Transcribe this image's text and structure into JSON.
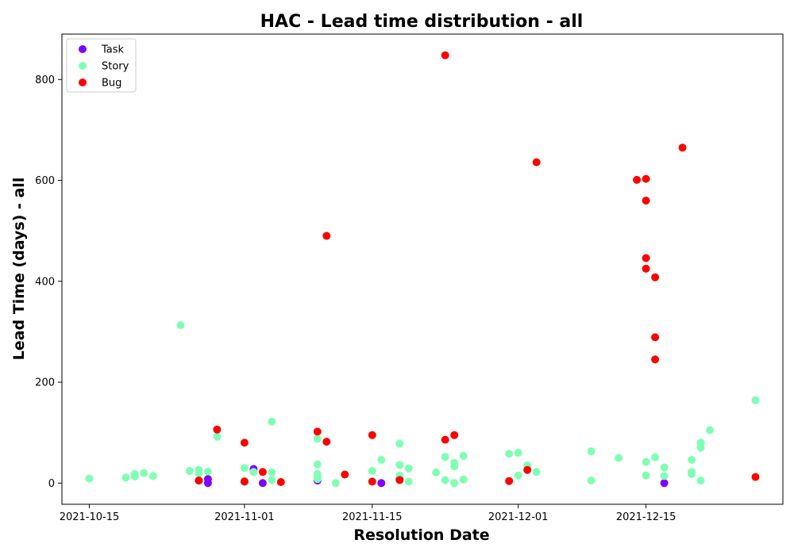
{
  "chart_data": {
    "type": "scatter",
    "title": "HAC - Lead time distribution - all",
    "xlabel": "Resolution Date",
    "ylabel": "Lead Time (days) - all",
    "xlim": [
      "2021-10-12",
      "2021-12-30"
    ],
    "ylim": [
      -42,
      890
    ],
    "x_ticks": [
      "2021-10-15",
      "2021-11-01",
      "2021-11-15",
      "2021-12-01",
      "2021-12-15"
    ],
    "y_ticks": [
      0,
      200,
      400,
      600,
      800
    ],
    "grid": false,
    "legend_position": "top-left",
    "series": [
      {
        "name": "Task",
        "color": "#8000ff",
        "points": [
          [
            "2021-10-28",
            8
          ],
          [
            "2021-10-28",
            0
          ],
          [
            "2021-11-01",
            3
          ],
          [
            "2021-11-02",
            28
          ],
          [
            "2021-11-03",
            0
          ],
          [
            "2021-11-09",
            5
          ],
          [
            "2021-11-16",
            0
          ],
          [
            "2021-11-18",
            8
          ],
          [
            "2021-12-17",
            0
          ]
        ]
      },
      {
        "name": "Story",
        "color": "#80ffb4",
        "points": [
          [
            "2021-10-15",
            9
          ],
          [
            "2021-10-19",
            11
          ],
          [
            "2021-10-20",
            18
          ],
          [
            "2021-10-20",
            13
          ],
          [
            "2021-10-21",
            20
          ],
          [
            "2021-10-22",
            14
          ],
          [
            "2021-10-25",
            313
          ],
          [
            "2021-10-26",
            24
          ],
          [
            "2021-10-26",
            24
          ],
          [
            "2021-10-27",
            26
          ],
          [
            "2021-10-27",
            19
          ],
          [
            "2021-10-28",
            23
          ],
          [
            "2021-10-29",
            92
          ],
          [
            "2021-11-01",
            30
          ],
          [
            "2021-11-01",
            5
          ],
          [
            "2021-11-02",
            22
          ],
          [
            "2021-11-04",
            122
          ],
          [
            "2021-11-04",
            21
          ],
          [
            "2021-11-04",
            6
          ],
          [
            "2021-11-09",
            88
          ],
          [
            "2021-11-09",
            12
          ],
          [
            "2021-11-09",
            18
          ],
          [
            "2021-11-09",
            8
          ],
          [
            "2021-11-09",
            37
          ],
          [
            "2021-11-11",
            0
          ],
          [
            "2021-11-15",
            24
          ],
          [
            "2021-11-16",
            46
          ],
          [
            "2021-11-18",
            78
          ],
          [
            "2021-11-18",
            36
          ],
          [
            "2021-11-18",
            15
          ],
          [
            "2021-11-19",
            29
          ],
          [
            "2021-11-19",
            3
          ],
          [
            "2021-11-22",
            21
          ],
          [
            "2021-11-23",
            52
          ],
          [
            "2021-11-23",
            6
          ],
          [
            "2021-11-24",
            40
          ],
          [
            "2021-11-24",
            33
          ],
          [
            "2021-11-24",
            0
          ],
          [
            "2021-11-25",
            54
          ],
          [
            "2021-11-25",
            7
          ],
          [
            "2021-11-30",
            58
          ],
          [
            "2021-12-01",
            60
          ],
          [
            "2021-12-01",
            15
          ],
          [
            "2021-12-02",
            35
          ],
          [
            "2021-12-03",
            22
          ],
          [
            "2021-12-09",
            63
          ],
          [
            "2021-12-09",
            5
          ],
          [
            "2021-12-12",
            50
          ],
          [
            "2021-12-15",
            42
          ],
          [
            "2021-12-15",
            15
          ],
          [
            "2021-12-16",
            51
          ],
          [
            "2021-12-17",
            31
          ],
          [
            "2021-12-17",
            14
          ],
          [
            "2021-12-20",
            46
          ],
          [
            "2021-12-20",
            22
          ],
          [
            "2021-12-20",
            18
          ],
          [
            "2021-12-21",
            80
          ],
          [
            "2021-12-21",
            70
          ],
          [
            "2021-12-21",
            5
          ],
          [
            "2021-12-22",
            105
          ],
          [
            "2021-12-27",
            164
          ]
        ]
      },
      {
        "name": "Bug",
        "color": "#ff0000",
        "points": [
          [
            "2021-10-27",
            5
          ],
          [
            "2021-10-27",
            5
          ],
          [
            "2021-10-29",
            106
          ],
          [
            "2021-11-01",
            80
          ],
          [
            "2021-11-01",
            3
          ],
          [
            "2021-11-03",
            22
          ],
          [
            "2021-11-05",
            2
          ],
          [
            "2021-11-09",
            102
          ],
          [
            "2021-11-10",
            490
          ],
          [
            "2021-11-10",
            82
          ],
          [
            "2021-11-12",
            17
          ],
          [
            "2021-11-15",
            95
          ],
          [
            "2021-11-15",
            3
          ],
          [
            "2021-11-18",
            6
          ],
          [
            "2021-11-23",
            848
          ],
          [
            "2021-11-23",
            86
          ],
          [
            "2021-11-24",
            95
          ],
          [
            "2021-11-30",
            4
          ],
          [
            "2021-12-02",
            26
          ],
          [
            "2021-12-03",
            636
          ],
          [
            "2021-12-14",
            601
          ],
          [
            "2021-12-15",
            603
          ],
          [
            "2021-12-15",
            446
          ],
          [
            "2021-12-15",
            560
          ],
          [
            "2021-12-15",
            425
          ],
          [
            "2021-12-16",
            408
          ],
          [
            "2021-12-16",
            289
          ],
          [
            "2021-12-16",
            245
          ],
          [
            "2021-12-19",
            665
          ],
          [
            "2021-12-27",
            12
          ]
        ]
      }
    ]
  }
}
